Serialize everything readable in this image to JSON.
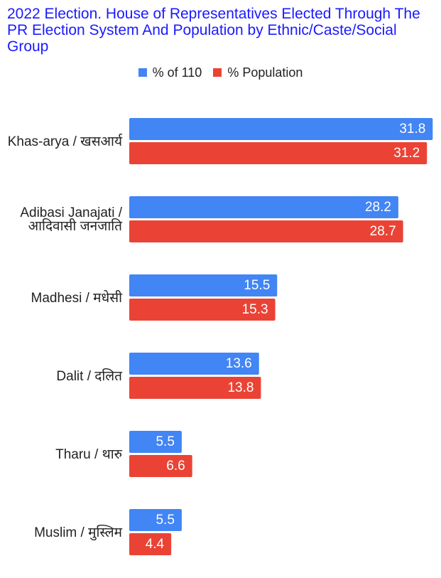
{
  "chart_data": {
    "type": "bar",
    "orientation": "horizontal",
    "title": "2022 Election. House of Representatives Elected Through The PR Election System And Population by Ethnic/Caste/Social Group",
    "categories": [
      "Khas-arya / खसआर्य",
      "Adibasi Janajati / आदिवासी जनजाति",
      "Madhesi / मधेसी",
      "Dalit / दलित",
      "Tharu / थारु",
      "Muslim / मुस्लिम"
    ],
    "series": [
      {
        "name": "% of 110",
        "color": "#4285f4",
        "values": [
          31.8,
          28.2,
          15.5,
          13.6,
          5.5,
          5.5
        ]
      },
      {
        "name": "% Population",
        "color": "#ea4335",
        "values": [
          31.2,
          28.7,
          15.3,
          13.8,
          6.6,
          4.4
        ]
      }
    ],
    "xlim": [
      0,
      32
    ],
    "legend": "top"
  }
}
